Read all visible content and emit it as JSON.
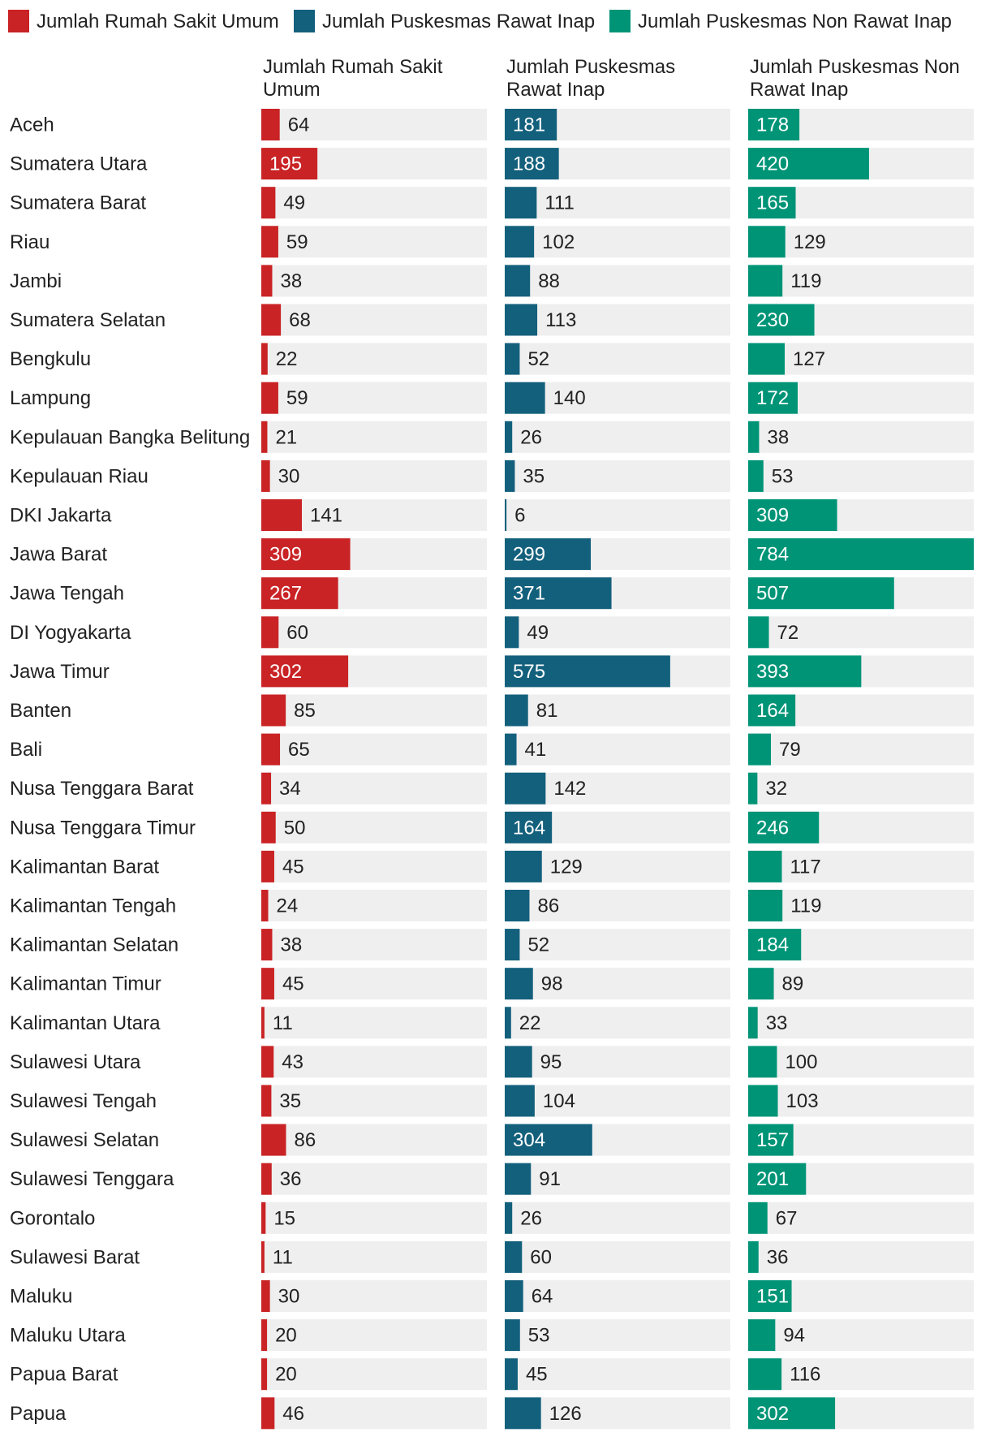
{
  "chart_data": {
    "type": "bar",
    "orientation": "horizontal",
    "layout": "split-bars",
    "legend_position": "top-left",
    "categories": [
      "Aceh",
      "Sumatera Utara",
      "Sumatera Barat",
      "Riau",
      "Jambi",
      "Sumatera Selatan",
      "Bengkulu",
      "Lampung",
      "Kepulauan Bangka Belitung",
      "Kepulauan Riau",
      "DKI Jakarta",
      "Jawa Barat",
      "Jawa Tengah",
      "DI Yogyakarta",
      "Jawa Timur",
      "Banten",
      "Bali",
      "Nusa Tenggara Barat",
      "Nusa Tenggara Timur",
      "Kalimantan Barat",
      "Kalimantan Tengah",
      "Kalimantan Selatan",
      "Kalimantan Timur",
      "Kalimantan Utara",
      "Sulawesi Utara",
      "Sulawesi Tengah",
      "Sulawesi Selatan",
      "Sulawesi Tenggara",
      "Gorontalo",
      "Sulawesi Barat",
      "Maluku",
      "Maluku Utara",
      "Papua Barat",
      "Papua"
    ],
    "series": [
      {
        "name": "Jumlah Rumah Sakit Umum",
        "header_lines": [
          "Jumlah Rumah Sakit",
          "Umum"
        ],
        "color": "#c92325",
        "max": 784,
        "values": [
          64,
          195,
          49,
          59,
          38,
          68,
          22,
          59,
          21,
          30,
          141,
          309,
          267,
          60,
          302,
          85,
          65,
          34,
          50,
          45,
          24,
          38,
          45,
          11,
          43,
          35,
          86,
          36,
          15,
          11,
          30,
          20,
          20,
          46
        ]
      },
      {
        "name": "Jumlah Puskesmas Rawat Inap",
        "header_lines": [
          "Jumlah Puskesmas",
          "Rawat Inap"
        ],
        "color": "#13607c",
        "max": 784,
        "values": [
          181,
          188,
          111,
          102,
          88,
          113,
          52,
          140,
          26,
          35,
          6,
          299,
          371,
          49,
          575,
          81,
          41,
          142,
          164,
          129,
          86,
          52,
          98,
          22,
          95,
          104,
          304,
          91,
          26,
          60,
          64,
          53,
          45,
          126
        ]
      },
      {
        "name": "Jumlah Puskesmas Non Rawat Inap",
        "header_lines": [
          "Jumlah Puskesmas Non",
          "Rawat Inap"
        ],
        "color": "#009477",
        "max": 784,
        "values": [
          178,
          420,
          165,
          129,
          119,
          230,
          127,
          172,
          38,
          53,
          309,
          784,
          507,
          72,
          393,
          164,
          79,
          32,
          246,
          117,
          119,
          184,
          89,
          33,
          100,
          103,
          157,
          201,
          67,
          36,
          151,
          94,
          116,
          302
        ]
      }
    ],
    "track_color": "#efefef",
    "label_color_inside": "#ffffff",
    "label_color_outside": "#222222",
    "category_text_color": "#222222"
  }
}
